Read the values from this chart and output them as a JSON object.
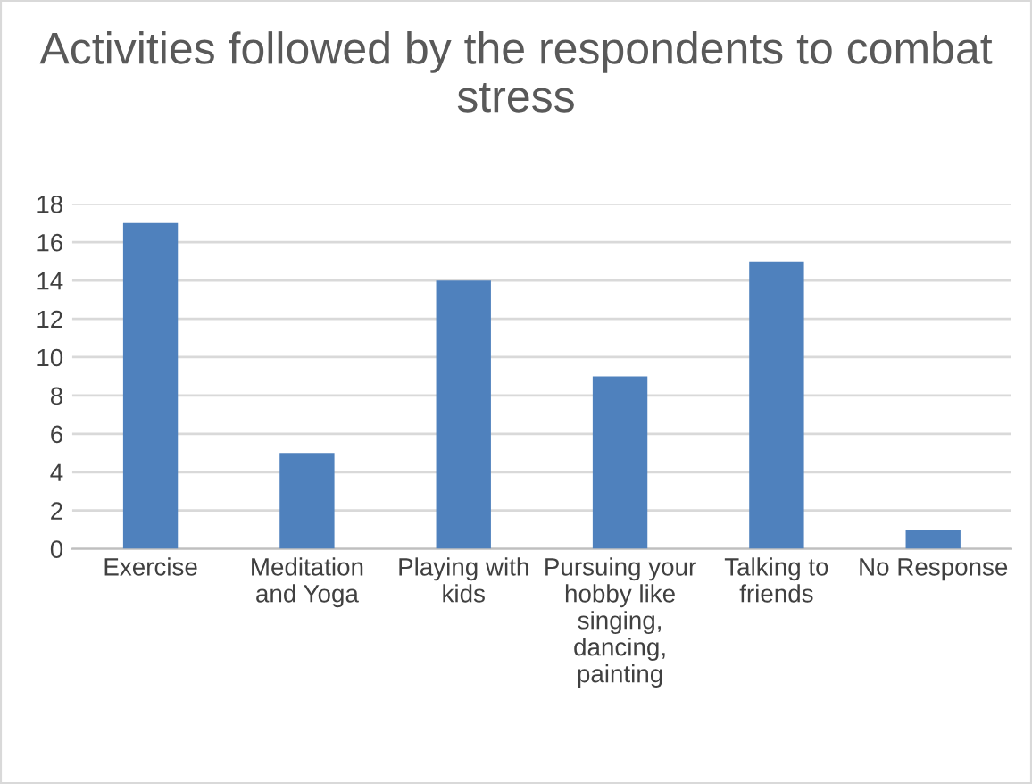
{
  "chart_data": {
    "type": "bar",
    "title": "Activities followed by the respondents to combat\nstress",
    "categories": [
      "Exercise",
      "Meditation\nand Yoga",
      "Playing with\nkids",
      "Pursuing your\nhobby like\nsinging,\ndancing,\npainting",
      "Talking to\nfriends",
      "No Response"
    ],
    "values": [
      17,
      5,
      14,
      9,
      15,
      1
    ],
    "color": "#4f81bd",
    "ylim": [
      0,
      18
    ],
    "yticks": [
      0,
      2,
      4,
      6,
      8,
      10,
      12,
      14,
      16,
      18
    ],
    "grid": "y",
    "legend": false
  }
}
